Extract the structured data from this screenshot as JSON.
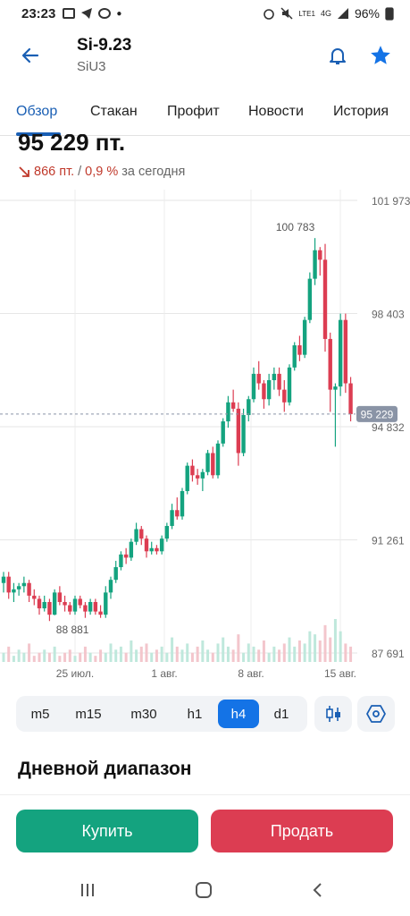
{
  "status_bar": {
    "time": "23:23",
    "network": "4G",
    "signal_label": "LTE1",
    "battery": "96%"
  },
  "header": {
    "title": "Si-9.23",
    "subtitle": "SiU3"
  },
  "tabs": [
    {
      "label": "Обзор",
      "active": true
    },
    {
      "label": "Стакан",
      "active": false
    },
    {
      "label": "Профит",
      "active": false
    },
    {
      "label": "Новости",
      "active": false
    },
    {
      "label": "История",
      "active": false
    }
  ],
  "price": {
    "value": "95 229 пт.",
    "change_abs": "866 пт.",
    "separator": "/",
    "change_pct": "0,9 %",
    "change_suffix": "за сегодня"
  },
  "colors": {
    "accent": "#1473e6",
    "up": "#14a37f",
    "down": "#dc3d52",
    "negative_text": "#c0392b"
  },
  "chart_data": {
    "type": "candlestick",
    "y_ticks": [
      "101 973",
      "98 403",
      "94 832",
      "91 261",
      "87 691"
    ],
    "x_ticks": [
      "25 июл.",
      "1 авг.",
      "8 авг.",
      "15 авг."
    ],
    "current_price_label": "95 229",
    "annotations": {
      "high": "100 783",
      "low": "88 881"
    },
    "ylim": [
      87691,
      101973
    ],
    "candles": [
      [
        89900,
        90250,
        89600,
        90100
      ],
      [
        90100,
        90250,
        89400,
        89600
      ],
      [
        89600,
        89900,
        89300,
        89700
      ],
      [
        89700,
        89900,
        89500,
        89800
      ],
      [
        89800,
        90100,
        89600,
        89900
      ],
      [
        89900,
        90000,
        89300,
        89500
      ],
      [
        89500,
        89700,
        89200,
        89400
      ],
      [
        89400,
        89500,
        88900,
        89100
      ],
      [
        89100,
        89500,
        89000,
        89300
      ],
      [
        89300,
        89400,
        88700,
        88900
      ],
      [
        88900,
        89700,
        88881,
        89600
      ],
      [
        89600,
        89800,
        89200,
        89300
      ],
      [
        89300,
        89500,
        89000,
        89200
      ],
      [
        89200,
        89300,
        88900,
        89000
      ],
      [
        89000,
        89500,
        88900,
        89400
      ],
      [
        89400,
        89500,
        89100,
        89200
      ],
      [
        89200,
        89300,
        88800,
        89000
      ],
      [
        89000,
        89400,
        88900,
        89300
      ],
      [
        89300,
        89400,
        88900,
        89000
      ],
      [
        89000,
        89200,
        88800,
        88900
      ],
      [
        88900,
        89800,
        88800,
        89600
      ],
      [
        89600,
        90100,
        89400,
        90000
      ],
      [
        90000,
        90600,
        89900,
        90400
      ],
      [
        90400,
        90900,
        90300,
        90800
      ],
      [
        90800,
        91000,
        90500,
        90700
      ],
      [
        90700,
        91300,
        90600,
        91200
      ],
      [
        91200,
        91800,
        91100,
        91600
      ],
      [
        91600,
        91700,
        91100,
        91300
      ],
      [
        91300,
        91400,
        90700,
        90900
      ],
      [
        90900,
        91200,
        90800,
        91000
      ],
      [
        91000,
        91100,
        90800,
        90900
      ],
      [
        90900,
        91400,
        90800,
        91300
      ],
      [
        91300,
        91800,
        91200,
        91700
      ],
      [
        91700,
        92400,
        91600,
        92200
      ],
      [
        92200,
        92600,
        91900,
        92000
      ],
      [
        92000,
        92900,
        91900,
        92800
      ],
      [
        92800,
        93700,
        92700,
        93600
      ],
      [
        93600,
        93800,
        93100,
        93300
      ],
      [
        93300,
        93500,
        93000,
        93200
      ],
      [
        93200,
        93500,
        92800,
        93400
      ],
      [
        93400,
        94100,
        93300,
        94000
      ],
      [
        94000,
        94200,
        93200,
        93300
      ],
      [
        93300,
        94400,
        93200,
        94300
      ],
      [
        94300,
        95100,
        94200,
        95000
      ],
      [
        95000,
        95800,
        94800,
        95600
      ],
      [
        95600,
        96000,
        95300,
        95400
      ],
      [
        95400,
        95600,
        93600,
        94000
      ],
      [
        94000,
        95400,
        93900,
        95200
      ],
      [
        95200,
        95800,
        95000,
        95700
      ],
      [
        95700,
        96700,
        95600,
        96500
      ],
      [
        96500,
        96900,
        96000,
        96200
      ],
      [
        96200,
        96300,
        95400,
        95700
      ],
      [
        95700,
        96500,
        95500,
        96300
      ],
      [
        96300,
        96700,
        96000,
        96500
      ],
      [
        96500,
        96700,
        95800,
        96000
      ],
      [
        96000,
        96300,
        95300,
        95600
      ],
      [
        95600,
        96800,
        95500,
        96700
      ],
      [
        96700,
        97500,
        96600,
        97400
      ],
      [
        97400,
        97700,
        96900,
        97100
      ],
      [
        97100,
        98300,
        97000,
        98200
      ],
      [
        98200,
        99700,
        98100,
        99500
      ],
      [
        99500,
        100783,
        99300,
        100400
      ],
      [
        100400,
        100500,
        99600,
        100100
      ],
      [
        100100,
        100600,
        97200,
        97600
      ],
      [
        97600,
        97800,
        95300,
        96000
      ],
      [
        96000,
        96200,
        94200,
        96100
      ],
      [
        96100,
        98400,
        95800,
        98200
      ],
      [
        98200,
        98400,
        95900,
        96200
      ],
      [
        96200,
        96400,
        95000,
        95229
      ]
    ],
    "volumes": [
      3,
      5,
      2,
      4,
      3,
      6,
      2,
      3,
      4,
      3,
      5,
      2,
      3,
      4,
      2,
      3,
      5,
      3,
      2,
      4,
      3,
      6,
      4,
      5,
      3,
      7,
      4,
      5,
      6,
      3,
      4,
      5,
      3,
      8,
      5,
      4,
      6,
      3,
      5,
      7,
      4,
      3,
      6,
      8,
      5,
      4,
      9,
      3,
      6,
      5,
      4,
      7,
      3,
      5,
      4,
      6,
      8,
      5,
      7,
      6,
      10,
      9,
      7,
      12,
      8,
      14,
      10,
      6,
      5
    ]
  },
  "timeframes": [
    {
      "label": "m5",
      "active": false
    },
    {
      "label": "m15",
      "active": false
    },
    {
      "label": "m30",
      "active": false
    },
    {
      "label": "h1",
      "active": false
    },
    {
      "label": "h4",
      "active": true
    },
    {
      "label": "d1",
      "active": false
    }
  ],
  "section": {
    "title": "Дневной диапазон"
  },
  "actions": {
    "buy_label": "Купить",
    "sell_label": "Продать"
  }
}
